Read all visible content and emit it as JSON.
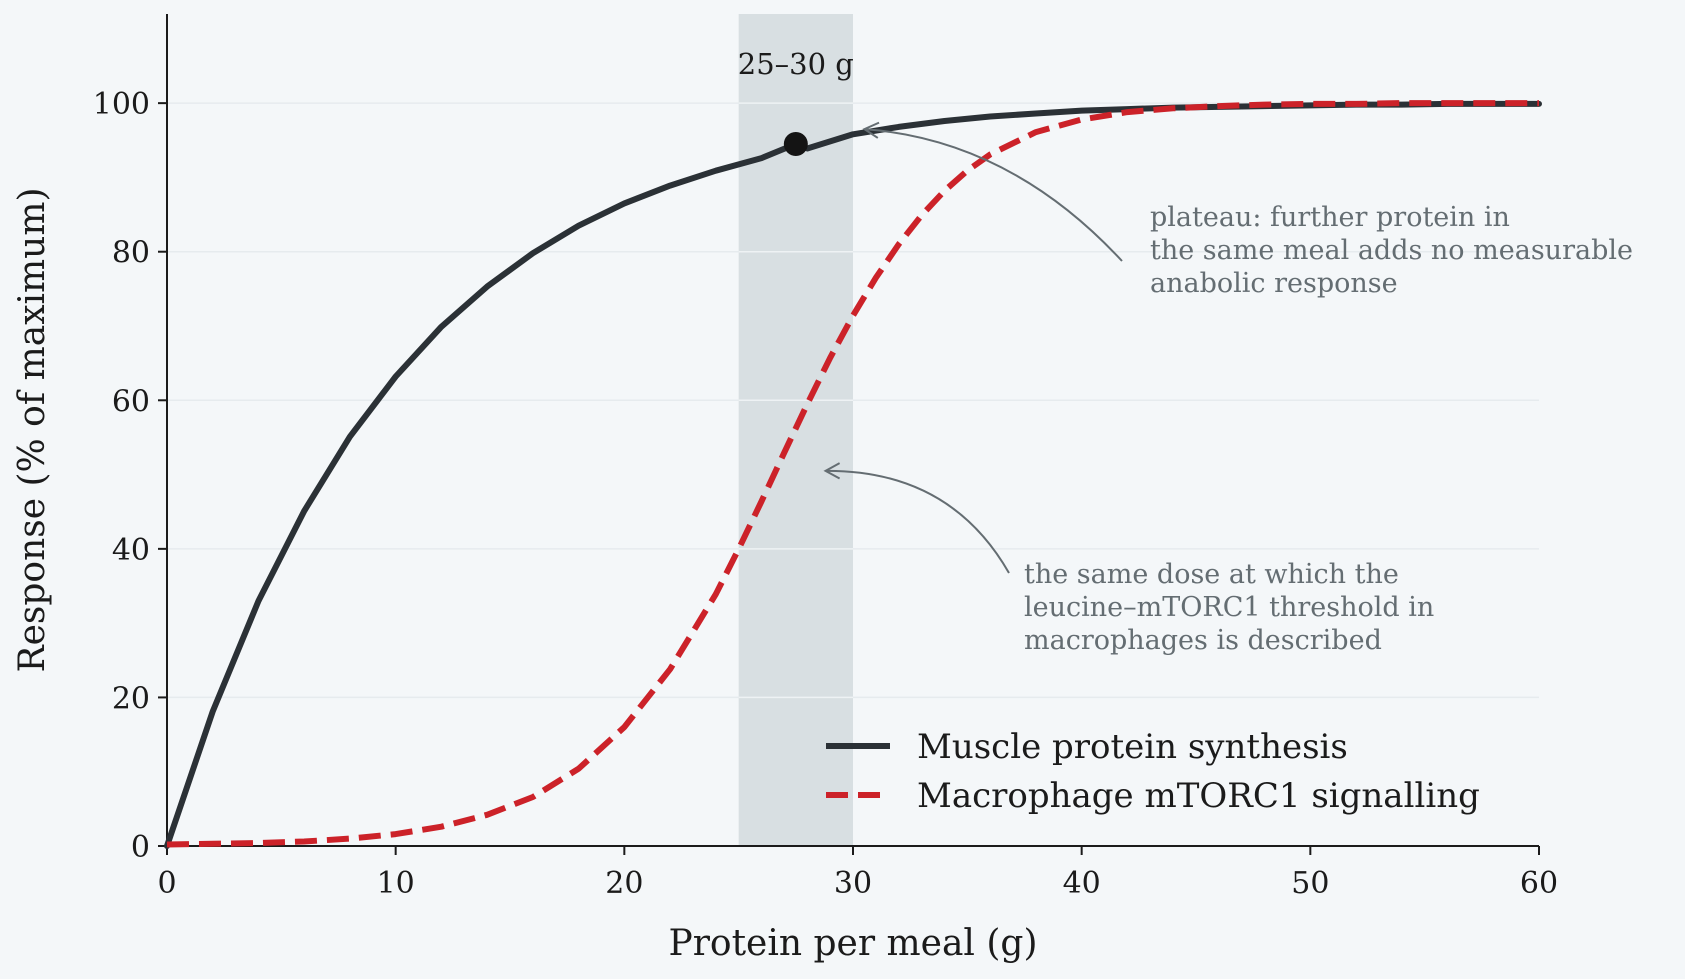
{
  "chart_data": {
    "type": "line",
    "title": "",
    "xlabel": "Protein per meal (g)",
    "ylabel": "Response (% of maximum)",
    "xlim": [
      0,
      60
    ],
    "ylim": [
      0,
      112
    ],
    "xticks": [
      0,
      10,
      20,
      30,
      40,
      50,
      60
    ],
    "yticks": [
      0,
      20,
      40,
      60,
      80,
      100
    ],
    "grid": "horizontal, faint",
    "legend_position": "lower-right",
    "series": [
      {
        "name": "Muscle protein synthesis",
        "color": "#2b3136",
        "style": "solid",
        "x": [
          0,
          2,
          4,
          6,
          8,
          10,
          12,
          14,
          16,
          18,
          20,
          22,
          24,
          26,
          27.5,
          28,
          30,
          32,
          34,
          36,
          38,
          40,
          42,
          44,
          46,
          48,
          50,
          52,
          54,
          56,
          58,
          60
        ],
        "y": [
          0,
          18.1,
          33,
          45.1,
          55.1,
          63.2,
          69.9,
          75.3,
          79.8,
          83.5,
          86.5,
          88.9,
          90.9,
          92.6,
          94.5,
          93.9,
          95.8,
          96.8,
          97.6,
          98.2,
          98.6,
          99.0,
          99.2,
          99.4,
          99.5,
          99.6,
          99.7,
          99.8,
          99.8,
          99.9,
          99.9,
          99.9
        ]
      },
      {
        "name": "Macrophage mTORC1 signalling",
        "color": "#cc2229",
        "style": "dashed",
        "x": [
          0,
          2,
          4,
          6,
          8,
          10,
          12,
          14,
          16,
          18,
          20,
          22,
          24,
          25,
          26,
          27,
          28,
          29,
          30,
          31,
          32,
          33,
          34,
          35,
          36,
          38,
          40,
          42,
          44,
          46,
          48,
          50,
          52,
          54,
          56,
          58,
          60
        ],
        "y": [
          0.2,
          0.3,
          0.4,
          0.6,
          1.0,
          1.6,
          2.6,
          4.2,
          6.6,
          10.4,
          16.0,
          23.8,
          33.9,
          40.0,
          46.4,
          53.0,
          59.5,
          65.7,
          71.4,
          76.5,
          81.0,
          84.9,
          88.2,
          90.9,
          93.1,
          96.1,
          97.8,
          98.8,
          99.3,
          99.6,
          99.8,
          99.9,
          99.9,
          100,
          100,
          100,
          100
        ]
      }
    ],
    "highlight_band": {
      "x0": 25,
      "x1": 30,
      "label": "25–30 g"
    },
    "marker": {
      "x": 27.5,
      "y": 94.5
    },
    "annotations": [
      {
        "text": [
          "plateau: further protein in",
          "the same meal adds no measurable",
          "anabolic response"
        ],
        "arrow_to": {
          "x": 30.5,
          "y": 96.5
        }
      },
      {
        "text": [
          "the same dose at which the",
          "leucine–mTORC1 threshold in",
          "macrophages is described"
        ],
        "arrow_to": {
          "x": 28.8,
          "y": 50.5
        }
      }
    ]
  }
}
